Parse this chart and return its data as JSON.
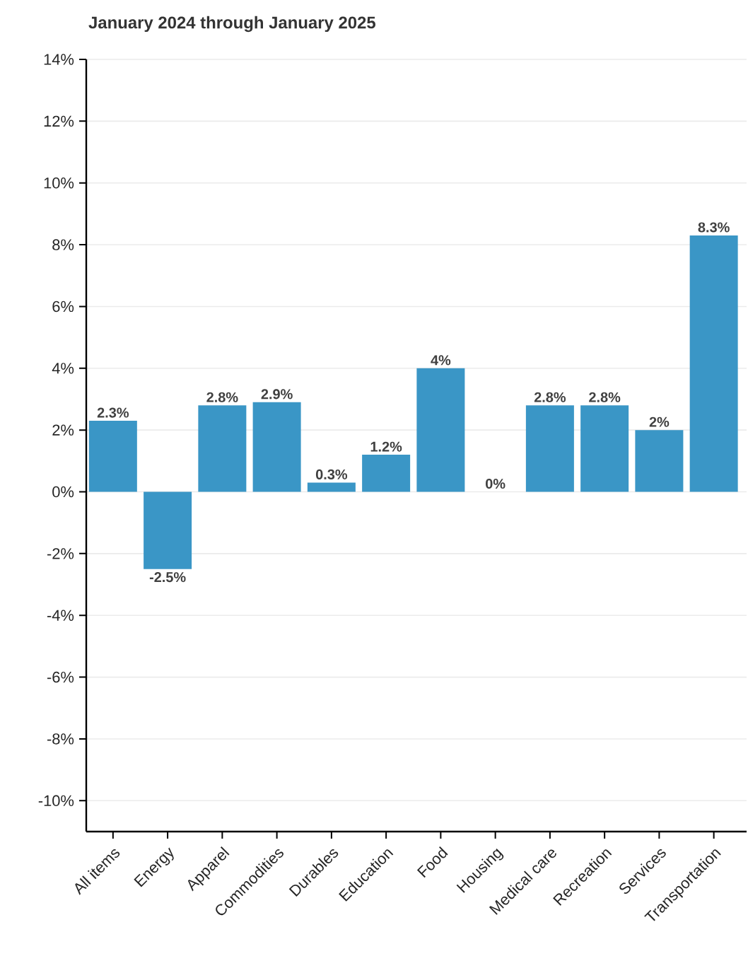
{
  "chart_data": {
    "type": "bar",
    "title": "January 2024 through January 2025",
    "categories": [
      "All items",
      "Energy",
      "Apparel",
      "Commodities",
      "Durables",
      "Education",
      "Food",
      "Housing",
      "Medical care",
      "Recreation",
      "Services",
      "Transportation"
    ],
    "values": [
      2.3,
      -2.5,
      2.8,
      2.9,
      0.3,
      1.2,
      4,
      0,
      2.8,
      2.8,
      2,
      8.3
    ],
    "value_labels": [
      "2.3%",
      "-2.5%",
      "2.8%",
      "2.9%",
      "0.3%",
      "1.2%",
      "4%",
      "0%",
      "2.8%",
      "2.8%",
      "2%",
      "8.3%"
    ],
    "color": "#3a96c6",
    "ylim": [
      -11,
      14
    ],
    "yticks": [
      {
        "value": -10,
        "label": "-10%"
      },
      {
        "value": -8,
        "label": "-8%"
      },
      {
        "value": -6,
        "label": "-6%"
      },
      {
        "value": -4,
        "label": "-4%"
      },
      {
        "value": -2,
        "label": "-2%"
      },
      {
        "value": 0,
        "label": "0%"
      },
      {
        "value": 2,
        "label": "2%"
      },
      {
        "value": 4,
        "label": "4%"
      },
      {
        "value": 6,
        "label": "6%"
      },
      {
        "value": 8,
        "label": "8%"
      },
      {
        "value": 10,
        "label": "10%"
      },
      {
        "value": 12,
        "label": "12%"
      },
      {
        "value": 14,
        "label": "14%"
      }
    ],
    "grid": "y"
  }
}
